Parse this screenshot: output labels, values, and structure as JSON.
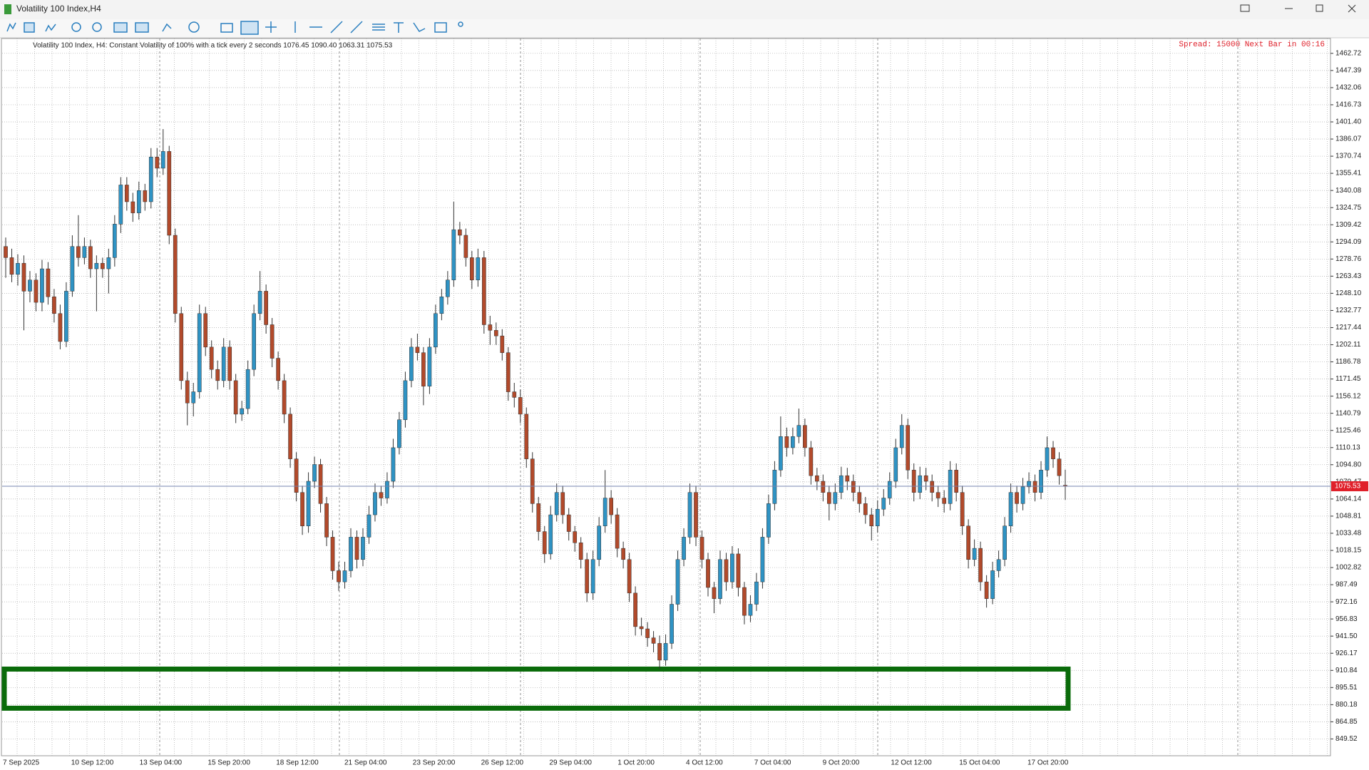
{
  "window": {
    "title": "Volatility 100 Index,H4"
  },
  "info": {
    "text": "Volatility 100 Index, H4:  Constant Volatility of 100% with a tick every 2 seconds  1076.45 1090.40 1063.31 1075.53",
    "status": "Spread: 15000 Next Bar in 00:16"
  },
  "chart_data": {
    "type": "candlestick",
    "up_color": "#2f93c4",
    "down_color": "#b24a2b",
    "grid": true,
    "xticks": [
      "7 Sep 2025",
      "10 Sep 12:00",
      "13 Sep 04:00",
      "15 Sep 20:00",
      "18 Sep 12:00",
      "21 Sep 04:00",
      "23 Sep 20:00",
      "26 Sep 12:00",
      "29 Sep 04:00",
      "1 Oct 20:00",
      "4 Oct 12:00",
      "7 Oct 04:00",
      "9 Oct 20:00",
      "12 Oct 12:00",
      "15 Oct 04:00",
      "17 Oct 20:00"
    ],
    "ylim": [
      834.5,
      1476
    ],
    "yticks": [
      1462.72,
      1447.39,
      1432.06,
      1416.73,
      {
        "value": 1401.4,
        "label": "1401.40"
      },
      1386.07,
      1370.74,
      1355.41,
      1340.08,
      1324.75,
      1309.42,
      1294.09,
      1278.76,
      1263.43,
      {
        "value": 1248.1,
        "label": "1248.10"
      },
      1232.77,
      1217.44,
      1202.11,
      1186.78,
      1171.45,
      1156.12,
      1140.79,
      1125.46,
      1110.13,
      {
        "value": 1094.8,
        "label": "1094.80"
      },
      1079.47,
      1064.14,
      1048.81,
      1033.48,
      1018.15,
      1002.82,
      987.49,
      972.16,
      956.83,
      {
        "value": 941.5,
        "label": "941.50"
      },
      926.17,
      910.84,
      895.51,
      880.18,
      864.85,
      849.52
    ],
    "bid": 1075.53,
    "bid_color": "#e0202a",
    "zone": {
      "top": 912,
      "bottom": 877,
      "color": "#0a6b0a"
    },
    "candles": [
      [
        1290,
        1298,
        1262,
        1280
      ],
      [
        1280,
        1288,
        1258,
        1265
      ],
      [
        1265,
        1283,
        1255,
        1275
      ],
      [
        1275,
        1282,
        1215,
        1250
      ],
      [
        1250,
        1268,
        1240,
        1260
      ],
      [
        1260,
        1266,
        1232,
        1240
      ],
      [
        1240,
        1278,
        1232,
        1270
      ],
      [
        1270,
        1276,
        1238,
        1245
      ],
      [
        1245,
        1252,
        1222,
        1230
      ],
      [
        1230,
        1238,
        1198,
        1205
      ],
      [
        1205,
        1258,
        1200,
        1250
      ],
      [
        1250,
        1300,
        1245,
        1290
      ],
      [
        1290,
        1318,
        1272,
        1280
      ],
      [
        1280,
        1298,
        1274,
        1290
      ],
      [
        1290,
        1296,
        1262,
        1270
      ],
      [
        1270,
        1282,
        1232,
        1275
      ],
      [
        1275,
        1280,
        1262,
        1270
      ],
      [
        1270,
        1288,
        1248,
        1280
      ],
      [
        1280,
        1318,
        1272,
        1310
      ],
      [
        1310,
        1352,
        1302,
        1345
      ],
      [
        1345,
        1352,
        1322,
        1330
      ],
      [
        1330,
        1338,
        1312,
        1320
      ],
      [
        1320,
        1348,
        1314,
        1340
      ],
      [
        1340,
        1346,
        1322,
        1330
      ],
      [
        1330,
        1378,
        1324,
        1370
      ],
      [
        1370,
        1378,
        1352,
        1360
      ],
      [
        1360,
        1395,
        1354,
        1375
      ],
      [
        1375,
        1380,
        1292,
        1300
      ],
      [
        1300,
        1306,
        1222,
        1230
      ],
      [
        1230,
        1236,
        1162,
        1170
      ],
      [
        1170,
        1178,
        1130,
        1150
      ],
      [
        1150,
        1168,
        1138,
        1160
      ],
      [
        1160,
        1238,
        1154,
        1230
      ],
      [
        1230,
        1236,
        1192,
        1200
      ],
      [
        1200,
        1206,
        1172,
        1180
      ],
      [
        1180,
        1188,
        1162,
        1170
      ],
      [
        1170,
        1208,
        1164,
        1200
      ],
      [
        1200,
        1206,
        1162,
        1170
      ],
      [
        1170,
        1176,
        1132,
        1140
      ],
      [
        1140,
        1152,
        1134,
        1145
      ],
      [
        1145,
        1188,
        1140,
        1180
      ],
      [
        1180,
        1238,
        1174,
        1230
      ],
      [
        1230,
        1268,
        1224,
        1250
      ],
      [
        1250,
        1256,
        1212,
        1220
      ],
      [
        1220,
        1226,
        1182,
        1190
      ],
      [
        1190,
        1196,
        1162,
        1170
      ],
      [
        1170,
        1176,
        1132,
        1140
      ],
      [
        1140,
        1146,
        1092,
        1100
      ],
      [
        1100,
        1106,
        1062,
        1070
      ],
      [
        1070,
        1076,
        1032,
        1040
      ],
      [
        1040,
        1088,
        1034,
        1080
      ],
      [
        1080,
        1102,
        1074,
        1095
      ],
      [
        1095,
        1100,
        1052,
        1060
      ],
      [
        1060,
        1066,
        1022,
        1030
      ],
      [
        1030,
        1036,
        992,
        1000
      ],
      [
        1000,
        1008,
        982,
        990
      ],
      [
        990,
        1008,
        984,
        1000
      ],
      [
        1000,
        1038,
        994,
        1030
      ],
      [
        1030,
        1036,
        1002,
        1010
      ],
      [
        1010,
        1038,
        1004,
        1030
      ],
      [
        1030,
        1058,
        1024,
        1050
      ],
      [
        1050,
        1078,
        1044,
        1070
      ],
      [
        1070,
        1076,
        1058,
        1065
      ],
      [
        1065,
        1088,
        1060,
        1080
      ],
      [
        1080,
        1118,
        1074,
        1110
      ],
      [
        1110,
        1142,
        1104,
        1135
      ],
      [
        1135,
        1178,
        1128,
        1170
      ],
      [
        1170,
        1208,
        1164,
        1200
      ],
      [
        1200,
        1212,
        1188,
        1195
      ],
      [
        1195,
        1200,
        1148,
        1165
      ],
      [
        1165,
        1208,
        1158,
        1200
      ],
      [
        1200,
        1238,
        1194,
        1230
      ],
      [
        1230,
        1252,
        1224,
        1245
      ],
      [
        1245,
        1268,
        1238,
        1260
      ],
      [
        1260,
        1330,
        1254,
        1305
      ],
      [
        1305,
        1312,
        1292,
        1300
      ],
      [
        1300,
        1306,
        1272,
        1280
      ],
      [
        1280,
        1286,
        1252,
        1260
      ],
      [
        1260,
        1288,
        1254,
        1280
      ],
      [
        1280,
        1286,
        1212,
        1220
      ],
      [
        1220,
        1228,
        1202,
        1215
      ],
      [
        1215,
        1222,
        1202,
        1210
      ],
      [
        1210,
        1216,
        1188,
        1195
      ],
      [
        1195,
        1200,
        1152,
        1160
      ],
      [
        1160,
        1168,
        1146,
        1155
      ],
      [
        1155,
        1162,
        1132,
        1140
      ],
      [
        1140,
        1146,
        1092,
        1100
      ],
      [
        1100,
        1106,
        1052,
        1060
      ],
      [
        1060,
        1066,
        1027,
        1035
      ],
      [
        1035,
        1040,
        1007,
        1015
      ],
      [
        1015,
        1058,
        1010,
        1050
      ],
      [
        1050,
        1078,
        1044,
        1070
      ],
      [
        1070,
        1076,
        1042,
        1050
      ],
      [
        1050,
        1056,
        1027,
        1035
      ],
      [
        1035,
        1040,
        1017,
        1025
      ],
      [
        1025,
        1030,
        1002,
        1010
      ],
      [
        1010,
        1016,
        972,
        980
      ],
      [
        980,
        1018,
        974,
        1010
      ],
      [
        1010,
        1048,
        1004,
        1040
      ],
      [
        1040,
        1090,
        1034,
        1065
      ],
      [
        1065,
        1072,
        1042,
        1050
      ],
      [
        1050,
        1056,
        1012,
        1020
      ],
      [
        1020,
        1026,
        1002,
        1010
      ],
      [
        1010,
        1016,
        972,
        980
      ],
      [
        980,
        986,
        942,
        950
      ],
      [
        950,
        958,
        942,
        948
      ],
      [
        948,
        954,
        932,
        940
      ],
      [
        940,
        946,
        927,
        935
      ],
      [
        935,
        942,
        912,
        920
      ],
      [
        920,
        943,
        915,
        935
      ],
      [
        935,
        978,
        930,
        970
      ],
      [
        970,
        1018,
        964,
        1010
      ],
      [
        1010,
        1038,
        1004,
        1030
      ],
      [
        1030,
        1078,
        1024,
        1070
      ],
      [
        1070,
        1076,
        1022,
        1030
      ],
      [
        1030,
        1036,
        1002,
        1010
      ],
      [
        1010,
        1016,
        977,
        985
      ],
      [
        985,
        990,
        962,
        975
      ],
      [
        975,
        1018,
        970,
        1010
      ],
      [
        1010,
        1016,
        982,
        990
      ],
      [
        990,
        1022,
        984,
        1015
      ],
      [
        1015,
        1020,
        977,
        985
      ],
      [
        985,
        990,
        952,
        960
      ],
      [
        960,
        978,
        954,
        970
      ],
      [
        970,
        998,
        964,
        990
      ],
      [
        990,
        1038,
        984,
        1030
      ],
      [
        1030,
        1068,
        1024,
        1060
      ],
      [
        1060,
        1098,
        1054,
        1090
      ],
      [
        1090,
        1138,
        1084,
        1120
      ],
      [
        1120,
        1128,
        1102,
        1110
      ],
      [
        1110,
        1128,
        1104,
        1120
      ],
      [
        1120,
        1145,
        1114,
        1130
      ],
      [
        1130,
        1136,
        1102,
        1110
      ],
      [
        1110,
        1116,
        1077,
        1085
      ],
      [
        1085,
        1092,
        1072,
        1080
      ],
      [
        1080,
        1086,
        1062,
        1070
      ],
      [
        1070,
        1076,
        1045,
        1060
      ],
      [
        1060,
        1078,
        1054,
        1070
      ],
      [
        1070,
        1093,
        1064,
        1085
      ],
      [
        1085,
        1092,
        1072,
        1080
      ],
      [
        1080,
        1086,
        1062,
        1070
      ],
      [
        1070,
        1076,
        1052,
        1060
      ],
      [
        1060,
        1066,
        1042,
        1050
      ],
      [
        1050,
        1056,
        1027,
        1040
      ],
      [
        1040,
        1063,
        1034,
        1055
      ],
      [
        1055,
        1073,
        1049,
        1065
      ],
      [
        1065,
        1088,
        1059,
        1080
      ],
      [
        1080,
        1118,
        1074,
        1110
      ],
      [
        1110,
        1140,
        1104,
        1130
      ],
      [
        1130,
        1136,
        1082,
        1090
      ],
      [
        1090,
        1096,
        1062,
        1070
      ],
      [
        1070,
        1093,
        1064,
        1085
      ],
      [
        1085,
        1092,
        1072,
        1080
      ],
      [
        1080,
        1086,
        1062,
        1070
      ],
      [
        1070,
        1076,
        1057,
        1065
      ],
      [
        1065,
        1072,
        1052,
        1060
      ],
      [
        1060,
        1098,
        1054,
        1090
      ],
      [
        1090,
        1096,
        1062,
        1070
      ],
      [
        1070,
        1076,
        1032,
        1040
      ],
      [
        1040,
        1046,
        1002,
        1010
      ],
      [
        1010,
        1028,
        1004,
        1020
      ],
      [
        1020,
        1026,
        982,
        990
      ],
      [
        990,
        996,
        967,
        975
      ],
      [
        975,
        1008,
        970,
        1000
      ],
      [
        1000,
        1018,
        994,
        1010
      ],
      [
        1010,
        1048,
        1004,
        1040
      ],
      [
        1040,
        1078,
        1034,
        1070
      ],
      [
        1070,
        1076,
        1052,
        1060
      ],
      [
        1060,
        1083,
        1054,
        1075
      ],
      [
        1075,
        1088,
        1069,
        1080
      ],
      [
        1080,
        1086,
        1062,
        1070
      ],
      [
        1070,
        1098,
        1064,
        1090
      ],
      [
        1090,
        1120,
        1084,
        1110
      ],
      [
        1110,
        1116,
        1092,
        1100
      ],
      [
        1100,
        1106,
        1077,
        1085
      ],
      [
        1076.45,
        1090.4,
        1063.31,
        1075.53
      ]
    ]
  }
}
